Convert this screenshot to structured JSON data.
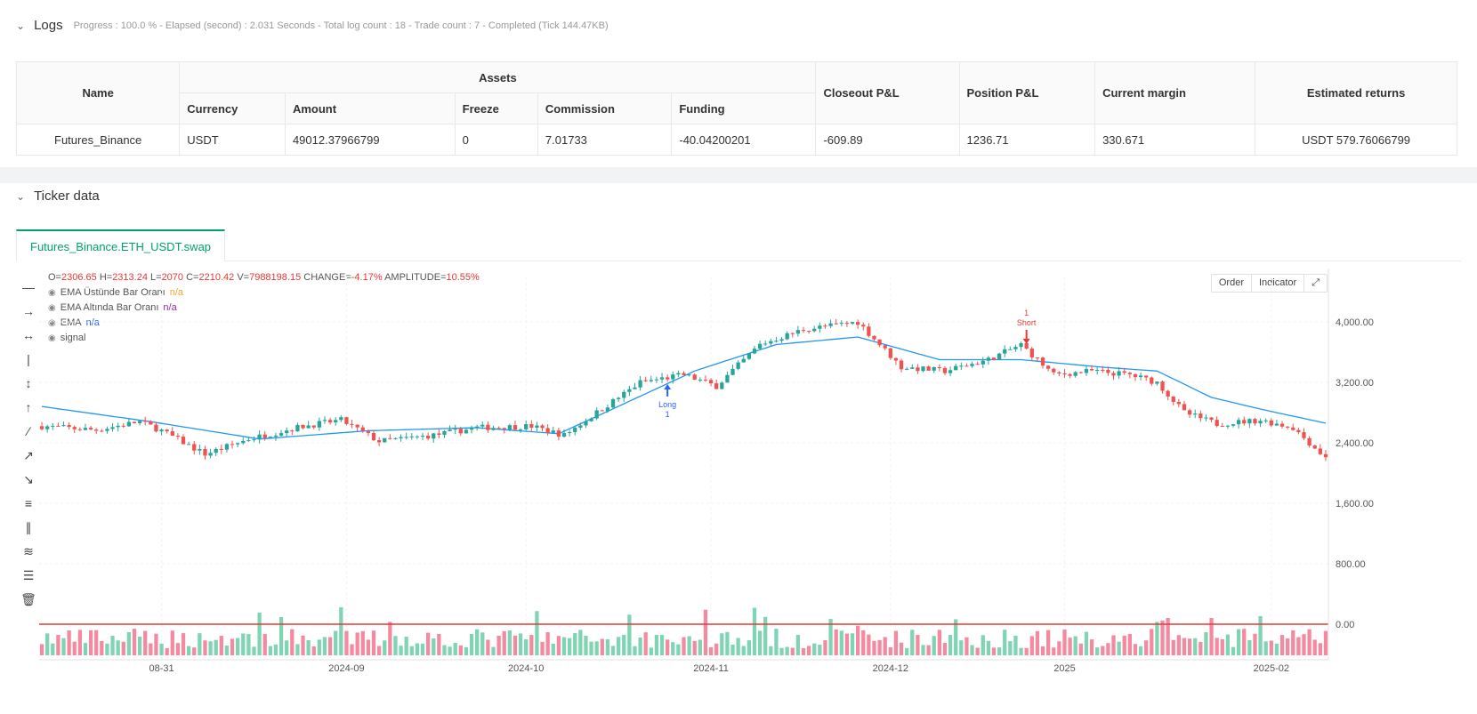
{
  "logs": {
    "title": "Logs",
    "meta": "Progress : 100.0 % - Elapsed (second) : 2.031 Seconds - Total log count : 18 - Trade count : 7 - Completed (Tick 144.47KB)"
  },
  "assets_table": {
    "headers": {
      "name": "Name",
      "assets": "Assets",
      "currency": "Currency",
      "amount": "Amount",
      "freeze": "Freeze",
      "commission": "Commission",
      "funding": "Funding",
      "closeout": "Closeout P&L",
      "position": "Position P&L",
      "margin": "Current margin",
      "returns": "Estimated returns"
    },
    "row": {
      "name": "Futures_Binance",
      "currency": "USDT",
      "amount": "49012.37966799",
      "freeze": "0",
      "commission": "7.01733",
      "funding": "-40.04200201",
      "closeout": "-609.89",
      "position": "1236.71",
      "margin": "330.671",
      "returns": "USDT 579.76066799"
    }
  },
  "ticker": {
    "title": "Ticker data",
    "tab": "Futures_Binance.ETH_USDT.swap"
  },
  "legend": {
    "o_label": "O=",
    "o": "2306.65",
    "h_label": "H=",
    "h": "2313.24",
    "l_label": "L=",
    "l": "2070",
    "c_label": "C=",
    "c": "2210.42",
    "v_label": "V=",
    "v": "7988198.15",
    "change_label": "CHANGE=",
    "change": "-4.17%",
    "amp_label": "AMPLITUDE=",
    "amp": "10.55%",
    "indicators": [
      {
        "name": "EMA Üstünde Bar Oranı",
        "value": "n/a",
        "color": "#f5a623"
      },
      {
        "name": "EMA Altında Bar Oranı",
        "value": "n/a",
        "color": "#9c27b0"
      },
      {
        "name": "EMA",
        "value": "n/a",
        "color": "#2962ff"
      },
      {
        "name": "signal",
        "value": "",
        "color": "#888888"
      }
    ]
  },
  "buttons": {
    "order": "Order",
    "indicator": "Indicator"
  },
  "chart_data": {
    "type": "candlestick",
    "ylim": [
      0,
      4400
    ],
    "y_ticks": [
      "4,000.00",
      "3,200.00",
      "2,400.00",
      "1,600.00",
      "800.00",
      "0.00"
    ],
    "x_ticks": [
      "08-31",
      "2024-09",
      "2024-10",
      "2024-11",
      "2024-12",
      "2025",
      "2025-02"
    ],
    "anchors": [
      [
        0,
        2620
      ],
      [
        10,
        2570
      ],
      [
        18,
        2680
      ],
      [
        22,
        2560
      ],
      [
        30,
        2250
      ],
      [
        38,
        2450
      ],
      [
        48,
        2620
      ],
      [
        55,
        2700
      ],
      [
        62,
        2420
      ],
      [
        72,
        2500
      ],
      [
        80,
        2600
      ],
      [
        90,
        2620
      ],
      [
        96,
        2500
      ],
      [
        104,
        2900
      ],
      [
        110,
        3200
      ],
      [
        118,
        3300
      ],
      [
        124,
        3150
      ],
      [
        132,
        3700
      ],
      [
        140,
        3900
      ],
      [
        150,
        4000
      ],
      [
        158,
        3400
      ],
      [
        166,
        3350
      ],
      [
        174,
        3500
      ],
      [
        180,
        3700
      ],
      [
        186,
        3300
      ],
      [
        193,
        3350
      ],
      [
        200,
        3300
      ],
      [
        205,
        3200
      ],
      [
        210,
        2800
      ],
      [
        216,
        2650
      ],
      [
        224,
        2700
      ],
      [
        230,
        2600
      ],
      [
        236,
        2200
      ]
    ],
    "ema_values": [
      [
        0,
        2880
      ],
      [
        20,
        2680
      ],
      [
        40,
        2450
      ],
      [
        60,
        2560
      ],
      [
        80,
        2600
      ],
      [
        95,
        2520
      ],
      [
        105,
        2850
      ],
      [
        120,
        3350
      ],
      [
        135,
        3700
      ],
      [
        150,
        3800
      ],
      [
        165,
        3500
      ],
      [
        180,
        3500
      ],
      [
        195,
        3400
      ],
      [
        205,
        3350
      ],
      [
        215,
        3000
      ],
      [
        225,
        2830
      ],
      [
        236,
        2660
      ]
    ],
    "candles_count": 237,
    "signals": [
      {
        "label_top": "Long",
        "label_bottom": "1",
        "index": 115,
        "direction": "up",
        "color": "#2962ff"
      },
      {
        "label_top": "1",
        "label_bottom": "Short",
        "index": 181,
        "direction": "down",
        "color": "#e53935"
      }
    ],
    "colors": {
      "up": "#26a69a",
      "down": "#ef5350",
      "ema": "#2196f3",
      "baseline": "#e53935"
    }
  }
}
